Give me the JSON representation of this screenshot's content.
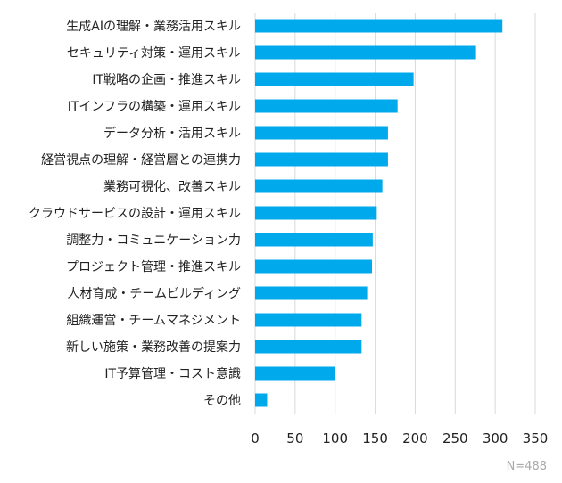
{
  "chart_data": {
    "type": "bar",
    "orientation": "horizontal",
    "categories": [
      "生成AIの理解・業務活用スキル",
      "セキュリティ対策・運用スキル",
      "IT戦略の企画・推進スキル",
      "ITインフラの構築・運用スキル",
      "データ分析・活用スキル",
      "経営視点の理解・経営層との連携力",
      "業務可視化、改善スキル",
      "クラウドサービスの設計・運用スキル",
      "調整力・コミュニケーション力",
      "プロジェクト管理・推進スキル",
      "人材育成・チームビルディング",
      "組織運営・チームマネジメント",
      "新しい施策・業務改善の提案力",
      "IT予算管理・コスト意識",
      "その他"
    ],
    "values": [
      309,
      276,
      198,
      178,
      166,
      166,
      159,
      152,
      147,
      146,
      140,
      133,
      133,
      100,
      15
    ],
    "xlim": [
      0,
      350
    ],
    "xticks": [
      "0",
      "50",
      "100",
      "150",
      "200",
      "250",
      "300",
      "350"
    ],
    "grid": true,
    "bar_color": "#00A9EC",
    "note": "N=488"
  }
}
